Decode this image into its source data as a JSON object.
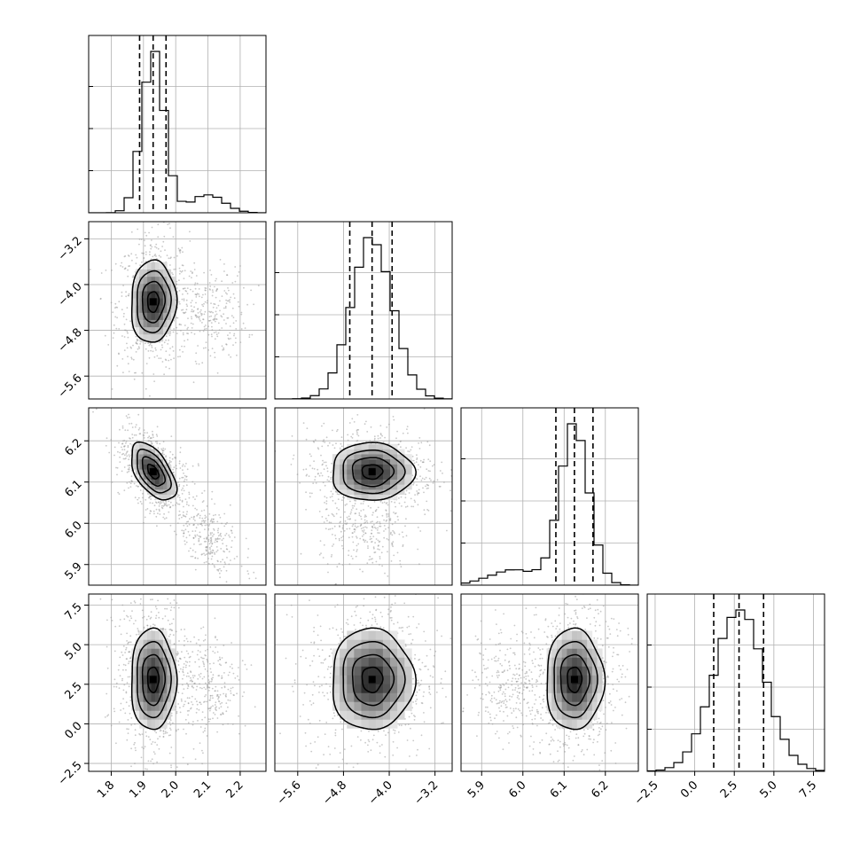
{
  "chart_data": {
    "type": "corner",
    "grid": true,
    "params": [
      {
        "range": [
          1.73,
          2.28
        ],
        "ticks": [
          1.8,
          1.9,
          2.0,
          2.1,
          2.2
        ],
        "tick_labels": [
          "1.8",
          "1.9",
          "2.0",
          "2.1",
          "2.2"
        ],
        "quantiles": [
          1.888,
          1.93,
          1.97
        ],
        "modes": [
          {
            "mu": 1.93,
            "sd": 0.035,
            "w": 0.86
          },
          {
            "mu": 2.1,
            "sd": 0.05,
            "w": 0.14
          }
        ]
      },
      {
        "range": [
          -6.0,
          -2.9
        ],
        "ticks": [
          -5.6,
          -4.8,
          -4.0,
          -3.2
        ],
        "tick_labels": [
          "−5.6",
          "−4.8",
          "−4.0",
          "−3.2"
        ],
        "quantiles": [
          -4.69,
          -4.3,
          -3.95
        ],
        "modes": [
          {
            "mu": -4.3,
            "sd": 0.36,
            "w": 1.0
          }
        ]
      },
      {
        "range": [
          5.85,
          6.28
        ],
        "ticks": [
          5.9,
          6.0,
          6.1,
          6.2
        ],
        "tick_labels": [
          "5.9",
          "6.0",
          "6.1",
          "6.2"
        ],
        "quantiles": [
          6.08,
          6.125,
          6.17
        ],
        "modes": [
          {
            "mu": 6.125,
            "sd": 0.035,
            "w": 0.86
          },
          {
            "mu": 5.98,
            "sd": 0.06,
            "w": 0.14
          }
        ]
      },
      {
        "range": [
          -3.0,
          8.2
        ],
        "ticks": [
          -2.5,
          0.0,
          2.5,
          5.0,
          7.5
        ],
        "tick_labels": [
          "−2.5",
          "0.0",
          "2.5",
          "5.0",
          "7.5"
        ],
        "quantiles": [
          1.2,
          2.8,
          4.35
        ],
        "modes": [
          {
            "mu": 2.8,
            "sd": 1.6,
            "w": 1.0
          }
        ]
      }
    ],
    "pairs": [
      {
        "x": 0,
        "y": 1,
        "center": [
          1.93,
          -4.3
        ],
        "sd": [
          0.035,
          0.36
        ],
        "rho": 0.05,
        "tail": {
          "center": [
            2.1,
            -4.5
          ],
          "sd": [
            0.06,
            0.4
          ],
          "rho": 0.0,
          "w": 0.14
        }
      },
      {
        "x": 0,
        "y": 2,
        "center": [
          1.93,
          6.125
        ],
        "sd": [
          0.035,
          0.035
        ],
        "rho": -0.55,
        "tail": {
          "center": [
            2.1,
            5.97
          ],
          "sd": [
            0.05,
            0.05
          ],
          "rho": -0.5,
          "w": 0.14
        }
      },
      {
        "x": 1,
        "y": 2,
        "center": [
          -4.3,
          6.125
        ],
        "sd": [
          0.36,
          0.035
        ],
        "rho": 0.0,
        "tail": {
          "center": [
            -4.4,
            5.97
          ],
          "sd": [
            0.4,
            0.05
          ],
          "rho": 0.0,
          "w": 0.14
        }
      },
      {
        "x": 0,
        "y": 3,
        "center": [
          1.93,
          2.8
        ],
        "sd": [
          0.035,
          1.6
        ],
        "rho": 0.0,
        "tail": {
          "center": [
            2.1,
            2.4
          ],
          "sd": [
            0.05,
            1.6
          ],
          "rho": 0.0,
          "w": 0.14
        }
      },
      {
        "x": 1,
        "y": 3,
        "center": [
          -4.3,
          2.8
        ],
        "sd": [
          0.36,
          1.6
        ],
        "rho": 0.0,
        "tail": null
      },
      {
        "x": 2,
        "y": 3,
        "center": [
          6.125,
          2.8
        ],
        "sd": [
          0.035,
          1.6
        ],
        "rho": 0.0,
        "tail": {
          "center": [
            5.97,
            2.6
          ],
          "sd": [
            0.05,
            1.6
          ],
          "rho": 0.0,
          "w": 0.14
        }
      }
    ],
    "contour_levels_sigma": [
      0.5,
      1.0,
      1.5,
      2.0
    ],
    "colors": {
      "line": "#000000",
      "grid": "#b0b0b0",
      "points": "#9a9a9a",
      "background": "#ffffff"
    }
  }
}
